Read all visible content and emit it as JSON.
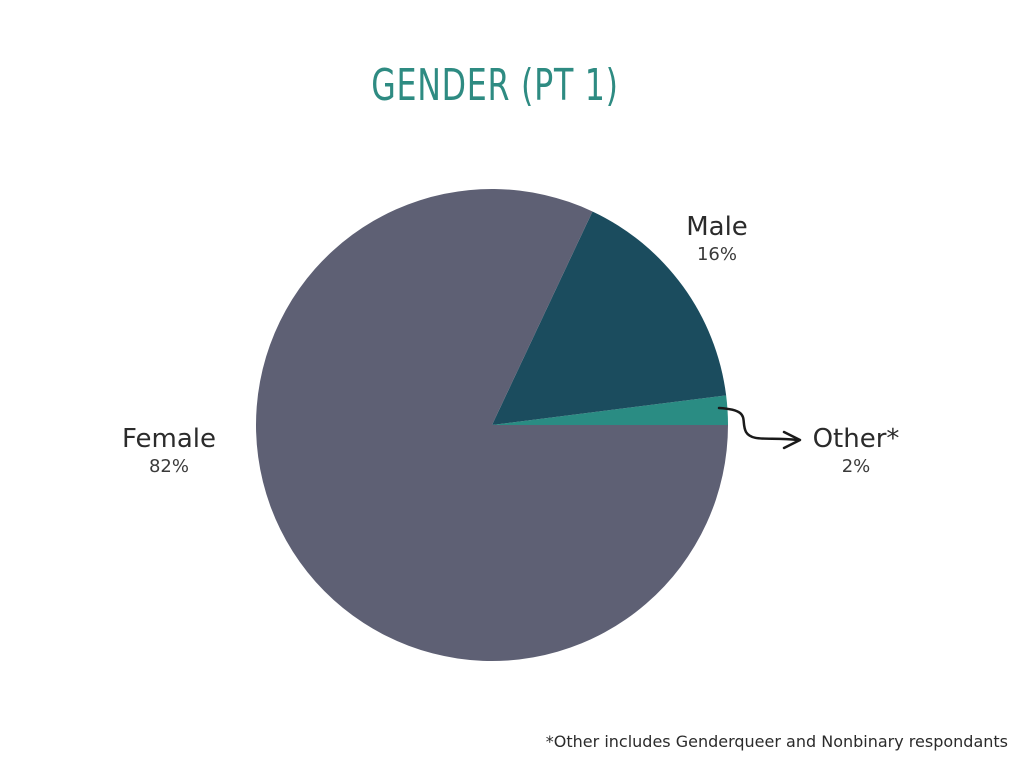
{
  "colors": {
    "title": "#2e8b82",
    "female": "#5e6074",
    "male": "#1b4c5e",
    "other": "#2a8c83",
    "arrow": "#1a1a1a"
  },
  "chart_data": {
    "type": "pie",
    "title": "GENDER (PT 1)",
    "slices": [
      {
        "label": "Female",
        "value": 82,
        "display": "82%",
        "color": "#5e6074"
      },
      {
        "label": "Male",
        "value": 16,
        "display": "16%",
        "color": "#1b4c5e"
      },
      {
        "label": "Other*",
        "value": 2,
        "display": "2%",
        "color": "#2a8c83"
      }
    ],
    "footnote": "*Other includes Genderqueer and Nonbinary respondants"
  }
}
